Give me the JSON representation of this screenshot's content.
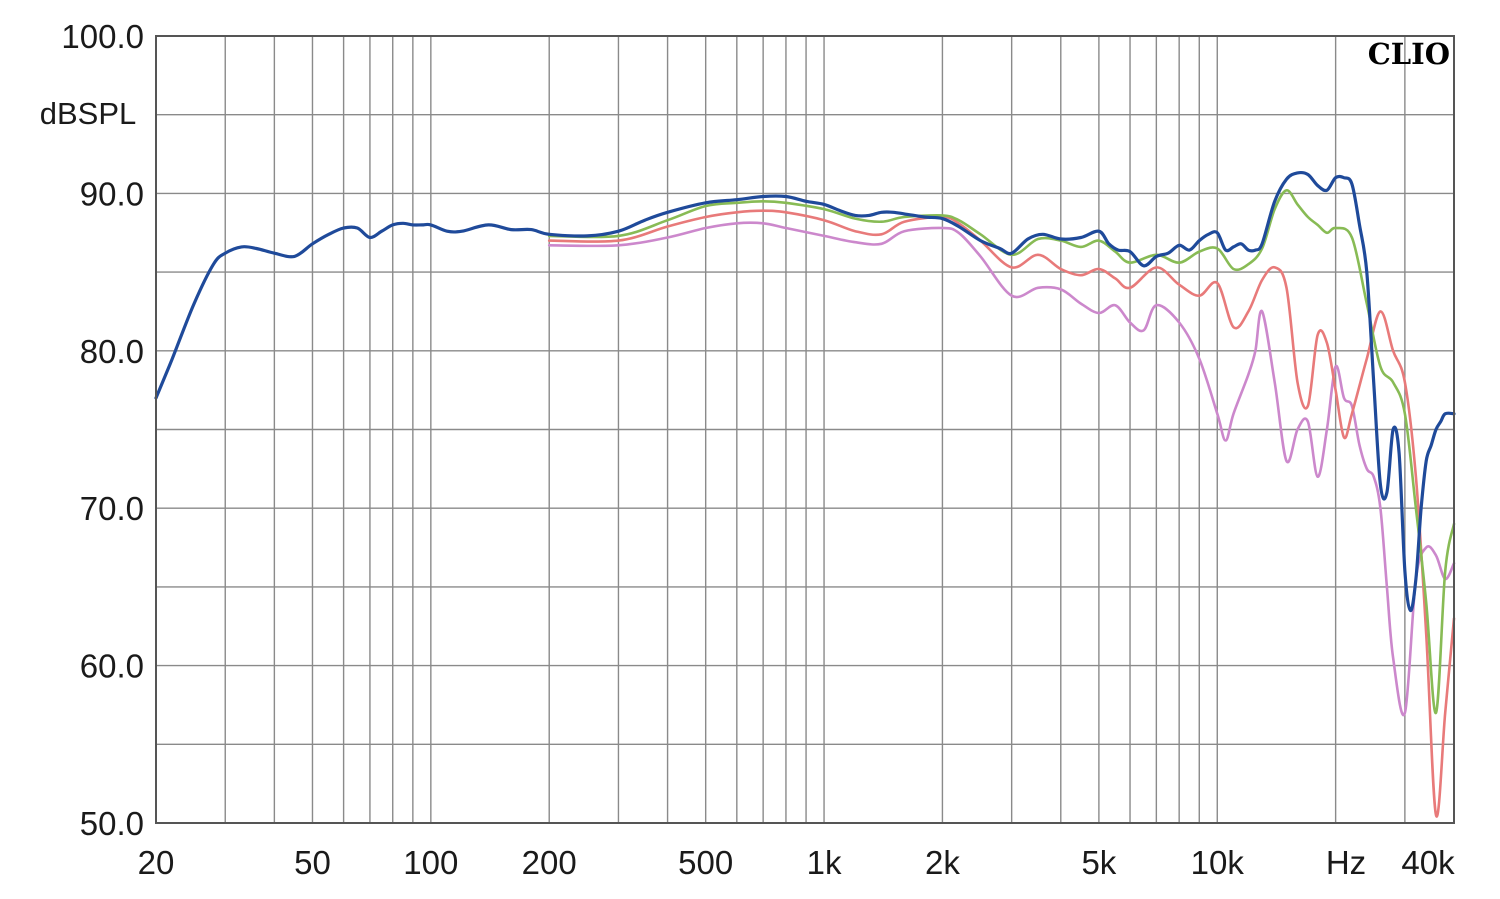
{
  "brand": "CLIO",
  "chart_data": {
    "type": "line",
    "x_scale": "log",
    "xlim": [
      20,
      40000
    ],
    "ylim": [
      50,
      100
    ],
    "ylabel": "dBSPL",
    "xunit": "Hz",
    "grid": true,
    "legend": "none",
    "y_ticks": [
      {
        "value": 100,
        "label": "100.0"
      },
      {
        "value": 90,
        "label": "90.0"
      },
      {
        "value": 80,
        "label": "80.0"
      },
      {
        "value": 70,
        "label": "70.0"
      },
      {
        "value": 60,
        "label": "60.0"
      },
      {
        "value": 50,
        "label": "50.0"
      }
    ],
    "x_ticks": [
      {
        "value": 20,
        "label": "20"
      },
      {
        "value": 50,
        "label": "50"
      },
      {
        "value": 100,
        "label": "100"
      },
      {
        "value": 200,
        "label": "200"
      },
      {
        "value": 500,
        "label": "500"
      },
      {
        "value": 1000,
        "label": "1k"
      },
      {
        "value": 2000,
        "label": "2k"
      },
      {
        "value": 5000,
        "label": "5k"
      },
      {
        "value": 10000,
        "label": "10k"
      },
      {
        "value": 40000,
        "label": "40k"
      }
    ],
    "series": [
      {
        "color": "#cc88cc",
        "x": [
          200,
          300,
          400,
          500,
          600,
          700,
          800,
          1000,
          1200,
          1400,
          1600,
          2000,
          2200,
          2500,
          3000,
          3500,
          4000,
          4500,
          5000,
          5500,
          6000,
          6500,
          7000,
          8000,
          9000,
          10000,
          10500,
          11000,
          12000,
          12500,
          13000,
          14000,
          15000,
          16000,
          17000,
          18000,
          19000,
          20000,
          21000,
          22000,
          23000,
          24000,
          25000,
          26000,
          27000,
          28000,
          30000,
          32000,
          34000,
          36000,
          38000,
          40000
        ],
        "y": [
          86.7,
          86.7,
          87.2,
          87.8,
          88.1,
          88.1,
          87.8,
          87.3,
          86.9,
          86.8,
          87.6,
          87.8,
          87.5,
          86.0,
          83.5,
          84.0,
          83.9,
          83.0,
          82.4,
          82.9,
          81.8,
          81.3,
          82.9,
          81.8,
          79.5,
          76.0,
          74.3,
          76.0,
          78.5,
          80.0,
          82.5,
          78.0,
          73.0,
          75.0,
          75.5,
          72.0,
          75.0,
          79.0,
          77.0,
          76.5,
          74.0,
          72.5,
          72.0,
          70.0,
          65.0,
          60.5,
          57.0,
          65.5,
          67.5,
          67.0,
          65.5,
          66.5
        ]
      },
      {
        "color": "#e87a7a",
        "x": [
          200,
          300,
          400,
          500,
          600,
          700,
          800,
          1000,
          1200,
          1400,
          1600,
          2000,
          2200,
          2500,
          3000,
          3500,
          4000,
          4500,
          5000,
          5500,
          6000,
          7000,
          8000,
          9000,
          10000,
          11000,
          12000,
          13000,
          14000,
          15000,
          16000,
          17000,
          18000,
          19000,
          20000,
          21000,
          22000,
          24000,
          26000,
          28000,
          30000,
          32000,
          34000,
          36000,
          38000,
          40000
        ],
        "y": [
          87.0,
          87.0,
          87.9,
          88.5,
          88.8,
          88.9,
          88.8,
          88.3,
          87.6,
          87.4,
          88.2,
          88.5,
          88.1,
          87.0,
          85.3,
          86.1,
          85.2,
          84.8,
          85.2,
          84.6,
          84.0,
          85.3,
          84.2,
          83.5,
          84.3,
          81.5,
          82.5,
          84.5,
          85.3,
          84.0,
          78.0,
          76.5,
          81.0,
          80.5,
          77.5,
          74.5,
          76.0,
          79.5,
          82.5,
          80.0,
          78.0,
          72.0,
          62.0,
          50.5,
          57.0,
          63.0
        ]
      },
      {
        "color": "#88bb55",
        "x": [
          200,
          300,
          400,
          500,
          600,
          700,
          800,
          1000,
          1200,
          1400,
          1600,
          2000,
          2200,
          2500,
          3000,
          3500,
          4000,
          4500,
          5000,
          5500,
          6000,
          7000,
          8000,
          9000,
          10000,
          11000,
          12000,
          13000,
          14000,
          15000,
          16000,
          17000,
          18000,
          19000,
          20000,
          22000,
          24000,
          26000,
          28000,
          30000,
          32000,
          34000,
          36000,
          38000,
          40000
        ],
        "y": [
          87.3,
          87.3,
          88.3,
          89.2,
          89.4,
          89.5,
          89.4,
          89.0,
          88.4,
          88.2,
          88.5,
          88.6,
          88.3,
          87.4,
          86.1,
          87.1,
          87.0,
          86.6,
          87.0,
          86.3,
          85.6,
          86.1,
          85.6,
          86.3,
          86.5,
          85.2,
          85.5,
          86.5,
          89.0,
          90.2,
          89.3,
          88.5,
          88.0,
          87.5,
          87.8,
          87.2,
          83.0,
          79.0,
          78.0,
          76.0,
          70.0,
          64.0,
          57.0,
          66.0,
          69.0
        ]
      },
      {
        "color": "#1f4a9a",
        "x": [
          20,
          22,
          25,
          28,
          30,
          33,
          36,
          40,
          45,
          50,
          55,
          60,
          65,
          70,
          75,
          80,
          85,
          90,
          95,
          100,
          110,
          120,
          140,
          160,
          180,
          200,
          250,
          300,
          350,
          400,
          500,
          600,
          700,
          800,
          900,
          1000,
          1100,
          1200,
          1300,
          1400,
          1500,
          1600,
          1800,
          2000,
          2200,
          2500,
          2800,
          3000,
          3300,
          3600,
          4000,
          4500,
          5000,
          5300,
          5600,
          6000,
          6500,
          7000,
          7500,
          8000,
          8500,
          9000,
          9500,
          10000,
          10500,
          11000,
          11500,
          12000,
          12500,
          13000,
          14000,
          15000,
          16000,
          17000,
          18000,
          19000,
          20000,
          21000,
          22000,
          23000,
          24000,
          25000,
          26000,
          27000,
          28000,
          29000,
          30000,
          31000,
          32000,
          33000,
          34000,
          35000,
          36000,
          37000,
          38000,
          40000
        ],
        "y": [
          77.0,
          79.5,
          83.0,
          85.5,
          86.2,
          86.6,
          86.5,
          86.2,
          86.0,
          86.8,
          87.4,
          87.8,
          87.8,
          87.2,
          87.6,
          88.0,
          88.1,
          88.0,
          88.0,
          88.0,
          87.6,
          87.6,
          88.0,
          87.7,
          87.7,
          87.4,
          87.3,
          87.6,
          88.3,
          88.8,
          89.4,
          89.6,
          89.8,
          89.8,
          89.5,
          89.3,
          88.9,
          88.6,
          88.6,
          88.8,
          88.8,
          88.7,
          88.5,
          88.4,
          87.9,
          87.0,
          86.5,
          86.2,
          87.1,
          87.4,
          87.1,
          87.2,
          87.6,
          86.8,
          86.4,
          86.3,
          85.4,
          86.0,
          86.2,
          86.7,
          86.4,
          87.0,
          87.4,
          87.5,
          86.4,
          86.6,
          86.8,
          86.4,
          86.4,
          86.8,
          89.5,
          90.9,
          91.3,
          91.2,
          90.5,
          90.2,
          91.0,
          91.0,
          90.6,
          88.0,
          85.0,
          78.0,
          71.5,
          71.0,
          75.0,
          73.5,
          66.0,
          63.5,
          65.5,
          70.0,
          73.0,
          74.0,
          75.0,
          75.5,
          76.0,
          76.0
        ]
      }
    ]
  }
}
